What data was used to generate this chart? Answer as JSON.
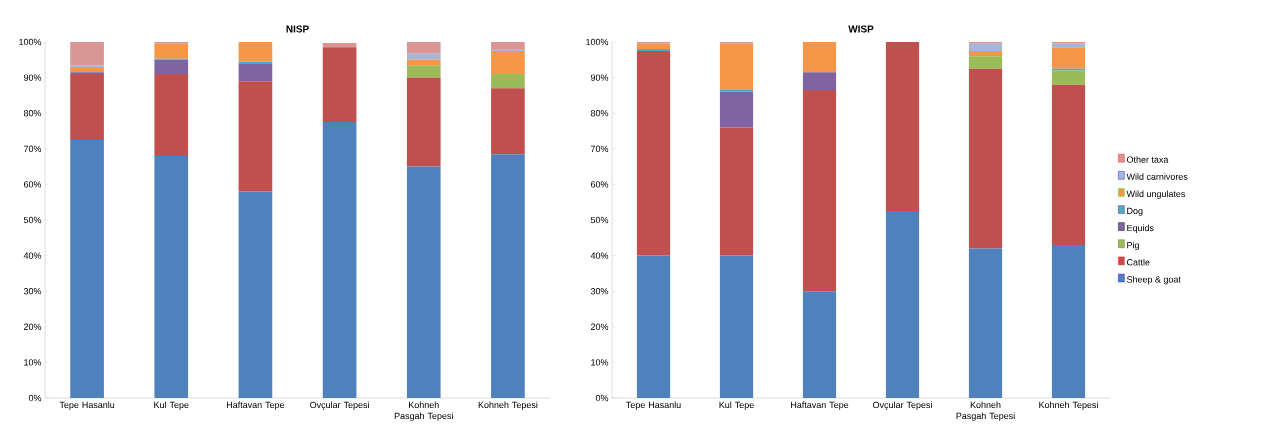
{
  "chart_data": [
    {
      "type": "bar",
      "title": "NISP",
      "stacked": true,
      "categories": [
        "Tepe Hasanlu",
        "Kul Tepe",
        "Haftavan Tepe",
        "Ovçular Tepesi",
        "Kohneh Pasgah Tepesi",
        "Kohneh Tepesi"
      ],
      "ylim": [
        0,
        100
      ],
      "yticks": [
        {
          "value": 0,
          "label": "0%"
        },
        {
          "value": 10,
          "label": "10%"
        },
        {
          "value": 20,
          "label": "20%"
        },
        {
          "value": 30,
          "label": "30%"
        },
        {
          "value": 40,
          "label": "40%"
        },
        {
          "value": 50,
          "label": "50%"
        },
        {
          "value": 60,
          "label": "60%"
        },
        {
          "value": 70,
          "label": "70%"
        },
        {
          "value": 80,
          "label": "80%"
        },
        {
          "value": 90,
          "label": "90%"
        },
        {
          "value": 100,
          "label": "100%"
        }
      ],
      "series": [
        {
          "color": "#4f81bd",
          "values": [
            72.5,
            68,
            58,
            77.5,
            65,
            68.5
          ]
        },
        {
          "color": "#c0504d",
          "values": [
            18.5,
            23,
            31,
            21,
            25,
            18.5
          ]
        },
        {
          "color": "#9bbb59",
          "values": [
            0,
            0,
            0,
            0,
            3.5,
            4
          ]
        },
        {
          "color": "#8064a2",
          "values": [
            0.5,
            4,
            5,
            0,
            0,
            0
          ]
        },
        {
          "color": "#4bacc6",
          "values": [
            0.3,
            0.3,
            0.5,
            0,
            0,
            0
          ]
        },
        {
          "color": "#f79646",
          "values": [
            1.2,
            4.2,
            5.5,
            0,
            1.5,
            6.5
          ]
        },
        {
          "color": "#a6b6d8",
          "values": [
            0.5,
            0,
            0,
            null,
            1.7,
            0.5
          ]
        },
        {
          "color": "#d99694",
          "values": [
            6.5,
            0.5,
            0,
            1.2,
            3.3,
            2
          ]
        }
      ]
    },
    {
      "type": "bar",
      "title": "WISP",
      "stacked": true,
      "legend": "right",
      "categories": [
        "Tepe Hasanlu",
        "Kul Tepe",
        "Haftavan Tepe",
        "Ovçular Tepesi",
        "Kohneh Pasgah Tepesi",
        "Kohneh Tepesi"
      ],
      "ylim": [
        0,
        100
      ],
      "yticks": [
        {
          "value": 0,
          "label": "0%"
        },
        {
          "value": 10,
          "label": "10%"
        },
        {
          "value": 20,
          "label": "20%"
        },
        {
          "value": 30,
          "label": "30%"
        },
        {
          "value": 40,
          "label": "40%"
        },
        {
          "value": 50,
          "label": "50%"
        },
        {
          "value": 60,
          "label": "60%"
        },
        {
          "value": 70,
          "label": "70%"
        },
        {
          "value": 80,
          "label": "80%"
        },
        {
          "value": 90,
          "label": "90%"
        },
        {
          "value": 100,
          "label": "100%"
        }
      ],
      "series": [
        {
          "name": "Sheep & goat",
          "color": "#4f81bd",
          "values": [
            40,
            40,
            30,
            52.5,
            42,
            43
          ]
        },
        {
          "name": "Cattle",
          "color": "#c0504d",
          "values": [
            57.5,
            36,
            56.5,
            47.5,
            50.5,
            45
          ]
        },
        {
          "name": "Pig",
          "color": "#9bbb59",
          "values": [
            0,
            0,
            0,
            0,
            3.5,
            4
          ]
        },
        {
          "name": "Equids",
          "color": "#8064a2",
          "values": [
            0,
            10,
            5,
            0,
            0,
            0
          ]
        },
        {
          "name": "Dog",
          "color": "#4bacc6",
          "values": [
            0.5,
            0.5,
            0,
            0,
            0,
            0.5
          ]
        },
        {
          "name": "Wild ungulates",
          "color": "#f79646",
          "values": [
            1.5,
            13,
            8.5,
            0,
            1.5,
            6
          ]
        },
        {
          "name": "Wild carnivores",
          "color": "#a6b6d8",
          "values": [
            0,
            0,
            0,
            0,
            2,
            1
          ]
        },
        {
          "name": "Other taxa",
          "color": "#d99694",
          "values": [
            0.5,
            0.5,
            0,
            0,
            0.5,
            0.5
          ]
        }
      ]
    }
  ]
}
